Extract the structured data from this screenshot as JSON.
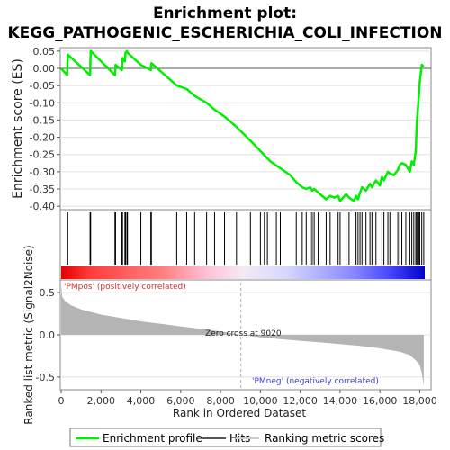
{
  "title": {
    "line1": "Enrichment plot:",
    "line2": "KEGG_PATHOGENIC_ESCHERICHIA_COLI_INFECTION"
  },
  "colors": {
    "es_line": "#00ee00",
    "hits": "#000000",
    "metric_fill": "#b4b4b4",
    "pos_label": "#c83232",
    "neg_label": "#3c3ccc",
    "grid": "#e0e0e0"
  },
  "annotations": {
    "pos": "'PMpos' (positively correlated)",
    "neg": "'PMneg' (negatively correlated)",
    "zero_cross": "Zero cross at 9020"
  },
  "legend": {
    "items": [
      {
        "label": "Enrichment profile",
        "kind": "line",
        "color": "#00ee00"
      },
      {
        "label": "Hits",
        "kind": "line",
        "color": "#555555"
      },
      {
        "label": "Ranking metric scores",
        "kind": "line",
        "color": "#cccccc"
      }
    ]
  },
  "chart_data": [
    {
      "type": "line",
      "ylabel": "Enrichment score (ES)",
      "ylim": [
        -0.41,
        0.06
      ],
      "yticks": [
        0.05,
        0.0,
        -0.05,
        -0.1,
        -0.15,
        -0.2,
        -0.25,
        -0.3,
        -0.35,
        -0.4
      ],
      "ytick_labels": [
        "0.05",
        "0.00",
        "-0.05",
        "-0.10",
        "-0.15",
        "-0.20",
        "-0.25",
        "-0.30",
        "-0.35",
        "-0.40"
      ],
      "xlim": [
        0,
        18500
      ],
      "grid": true,
      "series": [
        {
          "x": [
            0,
            300,
            330,
            1450,
            1480,
            2700,
            2730,
            3050,
            3080,
            3200,
            3230,
            3300,
            3330,
            4000,
            4500,
            4530,
            5800,
            6300,
            6700,
            7300,
            7700,
            8200,
            8800,
            9500,
            10000,
            10500,
            11000,
            11500,
            11800,
            12100,
            12300,
            12500,
            12600,
            12700,
            12900,
            13100,
            13300,
            13500,
            13700,
            13900,
            14000,
            14300,
            14450,
            14700,
            14800,
            14900,
            15000,
            15100,
            15300,
            15500,
            15600,
            15800,
            16000,
            16100,
            16200,
            16400,
            16500,
            16700,
            16900,
            17000,
            17100,
            17300,
            17500,
            17600,
            17700,
            17800,
            17850,
            17900,
            17950,
            18000,
            18100,
            18200
          ],
          "y": [
            0.0,
            -0.02,
            0.04,
            -0.02,
            0.05,
            -0.02,
            0.01,
            -0.005,
            0.03,
            0.02,
            0.045,
            0.05,
            0.045,
            0.01,
            -0.005,
            0.015,
            -0.05,
            -0.06,
            -0.08,
            -0.1,
            -0.12,
            -0.14,
            -0.17,
            -0.21,
            -0.24,
            -0.27,
            -0.29,
            -0.31,
            -0.33,
            -0.345,
            -0.35,
            -0.345,
            -0.355,
            -0.35,
            -0.36,
            -0.37,
            -0.38,
            -0.37,
            -0.375,
            -0.37,
            -0.385,
            -0.365,
            -0.375,
            -0.385,
            -0.37,
            -0.38,
            -0.36,
            -0.345,
            -0.355,
            -0.335,
            -0.345,
            -0.325,
            -0.34,
            -0.315,
            -0.325,
            -0.3,
            -0.305,
            -0.31,
            -0.295,
            -0.28,
            -0.275,
            -0.28,
            -0.3,
            -0.27,
            -0.28,
            -0.24,
            -0.16,
            -0.12,
            -0.08,
            -0.04,
            0.01,
            0.005
          ]
        }
      ]
    },
    {
      "type": "bar",
      "name": "gene-set-hits",
      "hit_ranks": [
        300,
        330,
        1450,
        1480,
        2700,
        2730,
        3050,
        3080,
        3200,
        3230,
        3300,
        3330,
        4000,
        4500,
        4530,
        5800,
        6300,
        6700,
        7300,
        7700,
        8200,
        8800,
        9500,
        10000,
        10200,
        10350,
        10800,
        11000,
        11800,
        12100,
        12300,
        12500,
        12600,
        12700,
        12900,
        13300,
        13500,
        13900,
        14000,
        14300,
        14450,
        14800,
        14900,
        15000,
        15100,
        15300,
        15500,
        15600,
        15800,
        16100,
        16200,
        16400,
        16500,
        16900,
        17000,
        17100,
        17300,
        17500,
        17600,
        17700,
        17800,
        17850,
        17900,
        17950,
        18000,
        18100,
        18200
      ],
      "color_band": {
        "positive_color": "#e60000",
        "mid_color": "#ffffff",
        "negative_color": "#0000dd"
      }
    },
    {
      "type": "area",
      "ylabel": "Ranked list metric (Signal2Noise)",
      "xlabel": "Rank in Ordered Dataset",
      "ylim": [
        -0.65,
        0.65
      ],
      "yticks": [
        0.5,
        0.0,
        -0.5
      ],
      "ytick_labels": [
        "0.5",
        "0.0",
        "-0.5"
      ],
      "xlim": [
        0,
        18500
      ],
      "xticks": [
        0,
        2000,
        4000,
        6000,
        8000,
        10000,
        12000,
        14000,
        16000,
        18000
      ],
      "xtick_labels": [
        "0",
        "2,000",
        "4,000",
        "6,000",
        "8,000",
        "10,000",
        "12,000",
        "14,000",
        "16,000",
        "18,000"
      ],
      "zero_cross": 9020,
      "x": [
        0,
        50,
        200,
        500,
        1000,
        2000,
        3000,
        4000,
        5000,
        6000,
        7000,
        8000,
        9020,
        10000,
        11000,
        12000,
        13000,
        14000,
        15000,
        16000,
        17000,
        17500,
        17800,
        18000,
        18100,
        18200
      ],
      "y": [
        0.6,
        0.45,
        0.4,
        0.35,
        0.3,
        0.24,
        0.2,
        0.16,
        0.13,
        0.1,
        0.07,
        0.04,
        0.0,
        -0.03,
        -0.05,
        -0.07,
        -0.09,
        -0.11,
        -0.13,
        -0.16,
        -0.2,
        -0.24,
        -0.3,
        -0.36,
        -0.45,
        -0.6
      ]
    }
  ]
}
